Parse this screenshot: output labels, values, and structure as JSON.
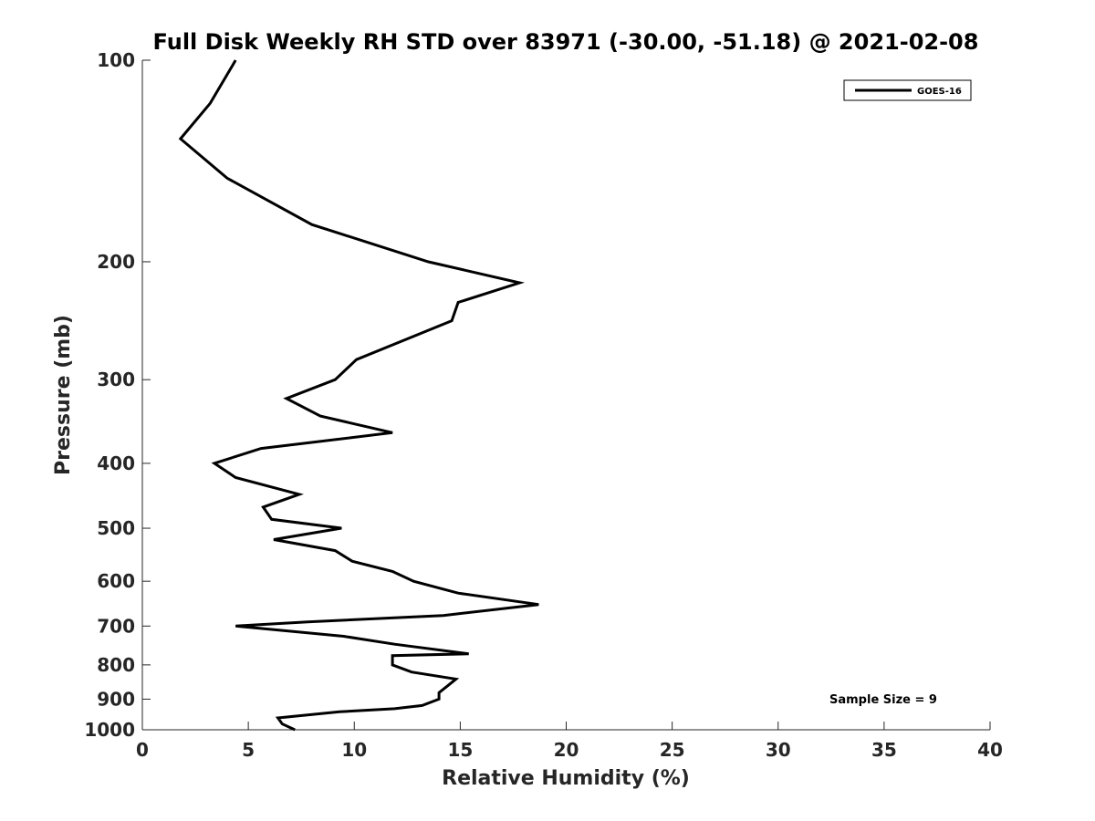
{
  "chart_data": {
    "type": "line",
    "title": "Full Disk Weekly RH STD over 83971 (-30.00, -51.18) @ 2021-02-08",
    "xlabel": "Relative Humidity (%)",
    "ylabel": "Pressure (mb)",
    "xlim": [
      0,
      40
    ],
    "ylim": [
      100,
      1000
    ],
    "y_scale": "log",
    "y_direction": "reversed",
    "x_ticks": [
      0,
      5,
      10,
      15,
      20,
      25,
      30,
      35,
      40
    ],
    "y_ticks": [
      100,
      200,
      300,
      400,
      500,
      600,
      700,
      800,
      900,
      1000
    ],
    "grid": false,
    "legend_position": "top-right",
    "line_color": "#000000",
    "series": [
      {
        "name": "GOES-16",
        "x": [
          4.4,
          3.2,
          1.8,
          4.0,
          8.0,
          13.5,
          17.8,
          14.9,
          14.6,
          10.1,
          9.1,
          6.8,
          8.4,
          11.8,
          5.6,
          3.4,
          4.4,
          7.4,
          5.7,
          6.1,
          9.4,
          6.2,
          9.1,
          9.9,
          11.8,
          12.8,
          14.9,
          18.7,
          14.2,
          7.8,
          4.4,
          9.5,
          11.9,
          15.4,
          11.8,
          11.8,
          12.7,
          14.8,
          14.4,
          14.0,
          14.0,
          13.2,
          11.9,
          9.3,
          6.4,
          6.6,
          7.2
        ],
        "y": [
          100,
          116,
          131,
          150,
          176,
          200,
          215,
          230,
          245,
          280,
          300,
          320,
          340,
          360,
          380,
          400,
          420,
          445,
          465,
          485,
          500,
          520,
          540,
          560,
          580,
          600,
          625,
          650,
          675,
          690,
          700,
          725,
          745,
          770,
          775,
          800,
          820,
          840,
          860,
          880,
          900,
          920,
          930,
          940,
          960,
          980,
          1000
        ]
      }
    ],
    "annotation": "Sample Size = 9"
  }
}
